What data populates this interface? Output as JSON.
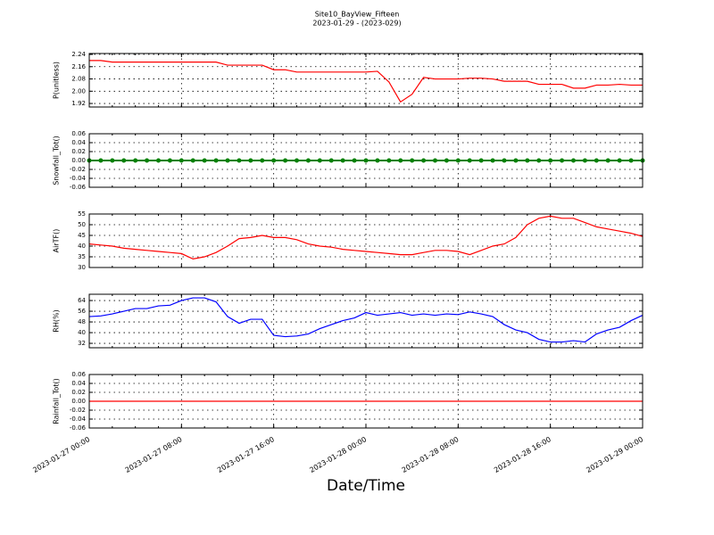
{
  "chart_data": [
    {
      "type": "line",
      "title": "Site10_BayView_Fifteen",
      "subtitle": "2023-01-29 - (2023-029)",
      "ylabel": "P(unitless)",
      "color": "#ff0000",
      "grid": true,
      "xlim": [
        "2023-01-27 00:00",
        "2023-01-29 00:00"
      ],
      "x": [
        "2023-01-27 00:00",
        "2023-01-27 01:00",
        "2023-01-27 02:00",
        "2023-01-27 03:00",
        "2023-01-27 04:00",
        "2023-01-27 05:00",
        "2023-01-27 06:00",
        "2023-01-27 07:00",
        "2023-01-27 08:00",
        "2023-01-27 09:00",
        "2023-01-27 10:00",
        "2023-01-27 11:00",
        "2023-01-27 12:00",
        "2023-01-27 13:00",
        "2023-01-27 14:00",
        "2023-01-27 15:00",
        "2023-01-27 16:00",
        "2023-01-27 17:00",
        "2023-01-27 18:00",
        "2023-01-27 19:00",
        "2023-01-27 20:00",
        "2023-01-27 21:00",
        "2023-01-27 22:00",
        "2023-01-27 23:00",
        "2023-01-28 00:00",
        "2023-01-28 01:00",
        "2023-01-28 02:00",
        "2023-01-28 03:00",
        "2023-01-28 04:00",
        "2023-01-28 05:00",
        "2023-01-28 06:00",
        "2023-01-28 07:00",
        "2023-01-28 08:00",
        "2023-01-28 09:00",
        "2023-01-28 10:00",
        "2023-01-28 11:00",
        "2023-01-28 12:00",
        "2023-01-28 13:00",
        "2023-01-28 14:00",
        "2023-01-28 15:00",
        "2023-01-28 16:00",
        "2023-01-28 17:00",
        "2023-01-28 18:00",
        "2023-01-28 19:00",
        "2023-01-28 20:00",
        "2023-01-28 21:00",
        "2023-01-28 22:00",
        "2023-01-28 23:00",
        "2023-01-29 00:00"
      ],
      "values": [
        2.2,
        2.2,
        2.19,
        2.19,
        2.19,
        2.19,
        2.19,
        2.19,
        2.19,
        2.19,
        2.19,
        2.19,
        2.17,
        2.17,
        2.17,
        2.17,
        2.14,
        2.14,
        2.125,
        2.125,
        2.125,
        2.125,
        2.125,
        2.125,
        2.125,
        2.13,
        2.06,
        1.93,
        1.98,
        2.09,
        2.08,
        2.08,
        2.08,
        2.085,
        2.085,
        2.08,
        2.065,
        2.065,
        2.065,
        2.045,
        2.045,
        2.045,
        2.02,
        2.02,
        2.04,
        2.04,
        2.045,
        2.04,
        2.04
      ],
      "ylim": [
        1.897,
        2.246
      ],
      "yticks": [
        1.92,
        {
          "value": 2,
          "label": "2.00"
        },
        2.08,
        2.16,
        2.24
      ]
    },
    {
      "type": "line",
      "ylabel": "Snowfall_Tot()",
      "color": "#008000",
      "marker": true,
      "grid": true,
      "xlim": [
        "2023-01-27 00:00",
        "2023-01-29 00:00"
      ],
      "x": [
        "2023-01-27 00:00",
        "2023-01-27 01:00",
        "2023-01-27 02:00",
        "2023-01-27 03:00",
        "2023-01-27 04:00",
        "2023-01-27 05:00",
        "2023-01-27 06:00",
        "2023-01-27 07:00",
        "2023-01-27 08:00",
        "2023-01-27 09:00",
        "2023-01-27 10:00",
        "2023-01-27 11:00",
        "2023-01-27 12:00",
        "2023-01-27 13:00",
        "2023-01-27 14:00",
        "2023-01-27 15:00",
        "2023-01-27 16:00",
        "2023-01-27 17:00",
        "2023-01-27 18:00",
        "2023-01-27 19:00",
        "2023-01-27 20:00",
        "2023-01-27 21:00",
        "2023-01-27 22:00",
        "2023-01-27 23:00",
        "2023-01-28 00:00",
        "2023-01-28 01:00",
        "2023-01-28 02:00",
        "2023-01-28 03:00",
        "2023-01-28 04:00",
        "2023-01-28 05:00",
        "2023-01-28 06:00",
        "2023-01-28 07:00",
        "2023-01-28 08:00",
        "2023-01-28 09:00",
        "2023-01-28 10:00",
        "2023-01-28 11:00",
        "2023-01-28 12:00",
        "2023-01-28 13:00",
        "2023-01-28 14:00",
        "2023-01-28 15:00",
        "2023-01-28 16:00",
        "2023-01-28 17:00",
        "2023-01-28 18:00",
        "2023-01-28 19:00",
        "2023-01-28 20:00",
        "2023-01-28 21:00",
        "2023-01-28 22:00",
        "2023-01-28 23:00",
        "2023-01-29 00:00"
      ],
      "values": [
        0,
        0,
        0,
        0,
        0,
        0,
        0,
        0,
        0,
        0,
        0,
        0,
        0,
        0,
        0,
        0,
        0,
        0,
        0,
        0,
        0,
        0,
        0,
        0,
        0,
        0,
        0,
        0,
        0,
        0,
        0,
        0,
        0,
        0,
        0,
        0,
        0,
        0,
        0,
        0,
        0,
        0,
        0,
        0,
        0,
        0,
        0,
        0,
        0
      ],
      "ylim": [
        -0.06,
        0.06
      ],
      "yticks": [
        -0.06,
        -0.04,
        -0.02,
        {
          "value": 0,
          "label": "0.00"
        },
        0.02,
        0.04,
        0.06
      ]
    },
    {
      "type": "line",
      "ylabel": "AirTF()",
      "color": "#ff0000",
      "grid": true,
      "xlim": [
        "2023-01-27 00:00",
        "2023-01-29 00:00"
      ],
      "x": [
        "2023-01-27 00:00",
        "2023-01-27 01:00",
        "2023-01-27 02:00",
        "2023-01-27 03:00",
        "2023-01-27 04:00",
        "2023-01-27 05:00",
        "2023-01-27 06:00",
        "2023-01-27 07:00",
        "2023-01-27 08:00",
        "2023-01-27 09:00",
        "2023-01-27 10:00",
        "2023-01-27 11:00",
        "2023-01-27 12:00",
        "2023-01-27 13:00",
        "2023-01-27 14:00",
        "2023-01-27 15:00",
        "2023-01-27 16:00",
        "2023-01-27 17:00",
        "2023-01-27 18:00",
        "2023-01-27 19:00",
        "2023-01-27 20:00",
        "2023-01-27 21:00",
        "2023-01-27 22:00",
        "2023-01-27 23:00",
        "2023-01-28 00:00",
        "2023-01-28 01:00",
        "2023-01-28 02:00",
        "2023-01-28 03:00",
        "2023-01-28 04:00",
        "2023-01-28 05:00",
        "2023-01-28 06:00",
        "2023-01-28 07:00",
        "2023-01-28 08:00",
        "2023-01-28 09:00",
        "2023-01-28 10:00",
        "2023-01-28 11:00",
        "2023-01-28 12:00",
        "2023-01-28 13:00",
        "2023-01-28 14:00",
        "2023-01-28 15:00",
        "2023-01-28 16:00",
        "2023-01-28 17:00",
        "2023-01-28 18:00",
        "2023-01-28 19:00",
        "2023-01-28 20:00",
        "2023-01-28 21:00",
        "2023-01-28 22:00",
        "2023-01-28 23:00",
        "2023-01-29 00:00"
      ],
      "values": [
        41,
        40.5,
        40,
        39,
        38.5,
        38,
        37.5,
        37,
        36.5,
        34,
        35,
        37,
        40,
        43.5,
        44,
        45,
        44,
        44,
        43,
        41,
        40,
        39.5,
        38.5,
        38,
        37.5,
        37,
        36.5,
        36,
        36,
        37,
        38,
        38,
        37.5,
        36,
        38,
        40,
        41,
        44,
        50,
        53,
        54,
        53,
        53,
        51,
        49,
        48,
        47,
        46,
        44.5
      ],
      "ylim": [
        30,
        55
      ],
      "yticks": [
        30,
        35,
        40,
        45,
        50,
        55
      ]
    },
    {
      "type": "line",
      "ylabel": "RH(%)",
      "color": "#0000ff",
      "grid": true,
      "xlim": [
        "2023-01-27 00:00",
        "2023-01-29 00:00"
      ],
      "x": [
        "2023-01-27 00:00",
        "2023-01-27 01:00",
        "2023-01-27 02:00",
        "2023-01-27 03:00",
        "2023-01-27 04:00",
        "2023-01-27 05:00",
        "2023-01-27 06:00",
        "2023-01-27 07:00",
        "2023-01-27 08:00",
        "2023-01-27 09:00",
        "2023-01-27 10:00",
        "2023-01-27 11:00",
        "2023-01-27 12:00",
        "2023-01-27 13:00",
        "2023-01-27 14:00",
        "2023-01-27 15:00",
        "2023-01-27 16:00",
        "2023-01-27 17:00",
        "2023-01-27 18:00",
        "2023-01-27 19:00",
        "2023-01-27 20:00",
        "2023-01-27 21:00",
        "2023-01-27 22:00",
        "2023-01-27 23:00",
        "2023-01-28 00:00",
        "2023-01-28 01:00",
        "2023-01-28 02:00",
        "2023-01-28 03:00",
        "2023-01-28 04:00",
        "2023-01-28 05:00",
        "2023-01-28 06:00",
        "2023-01-28 07:00",
        "2023-01-28 08:00",
        "2023-01-28 09:00",
        "2023-01-28 10:00",
        "2023-01-28 11:00",
        "2023-01-28 12:00",
        "2023-01-28 13:00",
        "2023-01-28 14:00",
        "2023-01-28 15:00",
        "2023-01-28 16:00",
        "2023-01-28 17:00",
        "2023-01-28 18:00",
        "2023-01-28 19:00",
        "2023-01-28 20:00",
        "2023-01-28 21:00",
        "2023-01-28 22:00",
        "2023-01-28 23:00",
        "2023-01-29 00:00"
      ],
      "values": [
        52,
        52.5,
        54,
        56,
        58,
        58,
        60,
        60.5,
        64,
        66,
        66,
        63,
        52,
        47,
        50,
        50,
        38,
        37,
        37.5,
        39,
        43,
        46,
        49,
        51,
        55,
        53,
        54,
        55,
        53,
        54,
        53,
        54,
        53.5,
        55.5,
        54,
        52,
        46,
        42,
        40,
        35,
        33,
        33,
        34,
        33,
        39,
        42,
        44,
        49,
        53
      ],
      "ylim": [
        28.7,
        68.7
      ],
      "yticks": [
        32,
        40,
        48,
        56,
        64
      ]
    },
    {
      "type": "line",
      "ylabel": "Rainfall_Tot()",
      "xlabel": "Date/Time",
      "color": "#ff0000",
      "grid": true,
      "xlim": [
        "2023-01-27 00:00",
        "2023-01-29 00:00"
      ],
      "xticks": [
        {
          "value": "2023-01-27 00:00",
          "label": "2023-01-27 00:00"
        },
        {
          "value": "2023-01-27 08:00",
          "label": "2023-01-27 08:00"
        },
        {
          "value": "2023-01-27 16:00",
          "label": "2023-01-27 16:00"
        },
        {
          "value": "2023-01-28 00:00",
          "label": "2023-01-28 00:00"
        },
        {
          "value": "2023-01-28 08:00",
          "label": "2023-01-28 08:00"
        },
        {
          "value": "2023-01-28 16:00",
          "label": "2023-01-28 16:00"
        },
        {
          "value": "2023-01-29 00:00",
          "label": "2023-01-29 00:00"
        }
      ],
      "x": [
        "2023-01-27 00:00",
        "2023-01-27 01:00",
        "2023-01-27 02:00",
        "2023-01-27 03:00",
        "2023-01-27 04:00",
        "2023-01-27 05:00",
        "2023-01-27 06:00",
        "2023-01-27 07:00",
        "2023-01-27 08:00",
        "2023-01-27 09:00",
        "2023-01-27 10:00",
        "2023-01-27 11:00",
        "2023-01-27 12:00",
        "2023-01-27 13:00",
        "2023-01-27 14:00",
        "2023-01-27 15:00",
        "2023-01-27 16:00",
        "2023-01-27 17:00",
        "2023-01-27 18:00",
        "2023-01-27 19:00",
        "2023-01-27 20:00",
        "2023-01-27 21:00",
        "2023-01-27 22:00",
        "2023-01-27 23:00",
        "2023-01-28 00:00",
        "2023-01-28 01:00",
        "2023-01-28 02:00",
        "2023-01-28 03:00",
        "2023-01-28 04:00",
        "2023-01-28 05:00",
        "2023-01-28 06:00",
        "2023-01-28 07:00",
        "2023-01-28 08:00",
        "2023-01-28 09:00",
        "2023-01-28 10:00",
        "2023-01-28 11:00",
        "2023-01-28 12:00",
        "2023-01-28 13:00",
        "2023-01-28 14:00",
        "2023-01-28 15:00",
        "2023-01-28 16:00",
        "2023-01-28 17:00",
        "2023-01-28 18:00",
        "2023-01-28 19:00",
        "2023-01-28 20:00",
        "2023-01-28 21:00",
        "2023-01-28 22:00",
        "2023-01-28 23:00",
        "2023-01-29 00:00"
      ],
      "values": [
        0,
        0,
        0,
        0,
        0,
        0,
        0,
        0,
        0,
        0,
        0,
        0,
        0,
        0,
        0,
        0,
        0,
        0,
        0,
        0,
        0,
        0,
        0,
        0,
        0,
        0,
        0,
        0,
        0,
        0,
        0,
        0,
        0,
        0,
        0,
        0,
        0,
        0,
        0,
        0,
        0,
        0,
        0,
        0,
        0,
        0,
        0,
        0,
        0
      ],
      "ylim": [
        -0.06,
        0.06
      ],
      "yticks": [
        -0.06,
        -0.04,
        -0.02,
        {
          "value": 0,
          "label": "0.00"
        },
        0.02,
        0.04,
        0.06
      ]
    }
  ]
}
